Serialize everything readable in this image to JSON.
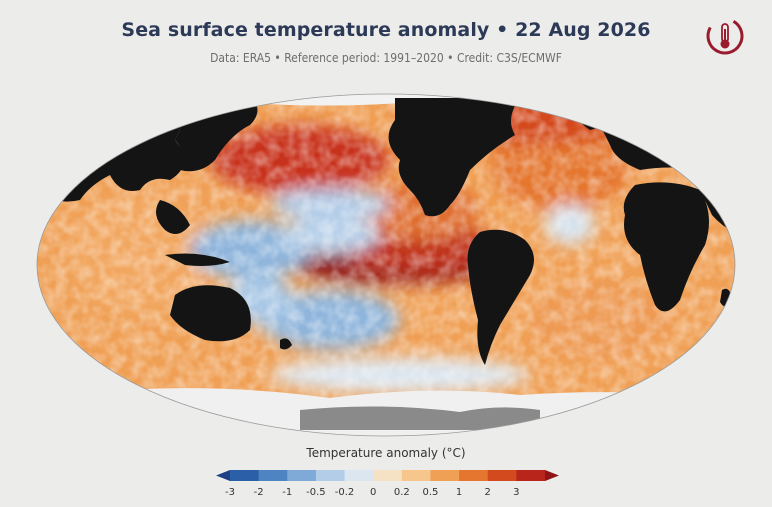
{
  "header": {
    "title": "Sea surface temperature anomaly • 22 Aug 2026",
    "subtitle": "Data: ERA5 • Reference period: 1991–2020 • Credit: C3S/ECMWF"
  },
  "logo": {
    "icon": "thermometer-globe-icon",
    "color": "#9a1b2e"
  },
  "map": {
    "projection": "Robinson-like world",
    "land_color": "#141414",
    "ice_color": "#f2f2f2",
    "ocean_scale": "diverging blue-white-orange-red"
  },
  "colorbar": {
    "title": "Temperature anomaly (°C)",
    "ticks": [
      "-3",
      "-2",
      "-1",
      "-0.5",
      "-0.2",
      "0",
      "0.2",
      "0.5",
      "1",
      "2",
      "3"
    ],
    "colors": [
      "#1c3f86",
      "#2b5fa8",
      "#4f84c2",
      "#7fa9d7",
      "#b3cde8",
      "#dce6f0",
      "#f5e1c4",
      "#f6c68c",
      "#f0a055",
      "#e5762f",
      "#d44a1f",
      "#b8261b",
      "#8e1418"
    ]
  }
}
